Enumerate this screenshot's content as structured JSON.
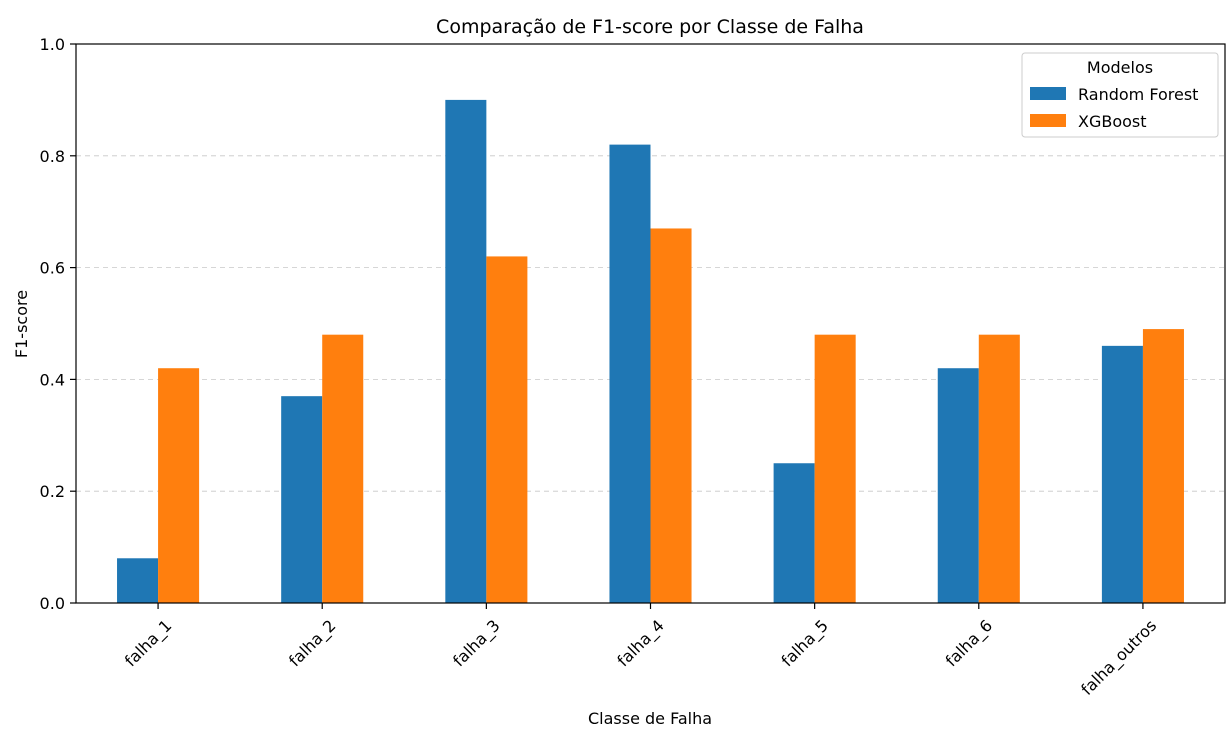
{
  "chart_data": {
    "type": "bar",
    "title": "Comparação de F1-score por Classe de Falha",
    "xlabel": "Classe de Falha",
    "ylabel": "F1-score",
    "ylim": [
      0,
      1.0
    ],
    "yticks": [
      "0.0",
      "0.2",
      "0.4",
      "0.6",
      "0.8",
      "1.0"
    ],
    "grid": "horizontal dashed",
    "categories": [
      "falha_1",
      "falha_2",
      "falha_3",
      "falha_4",
      "falha_5",
      "falha_6",
      "falha_outros"
    ],
    "series": [
      {
        "name": "Random Forest",
        "color": "#1f77b4",
        "values": [
          0.08,
          0.37,
          0.9,
          0.82,
          0.25,
          0.42,
          0.46
        ]
      },
      {
        "name": "XGBoost",
        "color": "#ff7f0e",
        "values": [
          0.42,
          0.48,
          0.62,
          0.67,
          0.48,
          0.48,
          0.49
        ]
      }
    ],
    "legend": {
      "title": "Modelos",
      "placement": "top-right"
    }
  }
}
